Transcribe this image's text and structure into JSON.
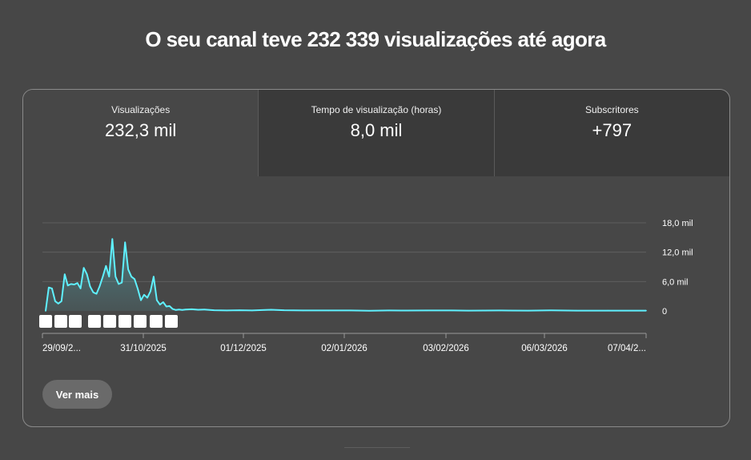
{
  "headline": "O seu canal teve 232 339 visualizações até agora",
  "tabs": [
    {
      "label": "Visualizações",
      "value": "232,3 mil"
    },
    {
      "label": "Tempo de visualização (horas)",
      "value": "8,0 mil"
    },
    {
      "label": "Subscritores",
      "value": "+797"
    }
  ],
  "button": {
    "label": "Ver mais"
  },
  "colors": {
    "line": "#5ff1ff",
    "background": "#474747",
    "tab_inactive": "#3a3a3a"
  },
  "chart_data": {
    "type": "area",
    "y_ticks": [
      "18,0 mil",
      "12,0 mil",
      "6,0 mil",
      "0"
    ],
    "ylim": [
      0,
      18000
    ],
    "x_tick_labels": [
      "29/09/2...",
      "31/10/2025",
      "01/12/2025",
      "02/01/2026",
      "03/02/2026",
      "06/03/2026",
      "07/04/2..."
    ],
    "x_start": "2025-09-29",
    "x_end": "2026-04-07",
    "event_marker_count": 10,
    "grid": true,
    "series": [
      {
        "points": [
          [
            "2025-09-30",
            0
          ],
          [
            "2025-10-01",
            4800
          ],
          [
            "2025-10-02",
            4600
          ],
          [
            "2025-10-03",
            2000
          ],
          [
            "2025-10-04",
            1500
          ],
          [
            "2025-10-05",
            2000
          ],
          [
            "2025-10-06",
            7500
          ],
          [
            "2025-10-07",
            5200
          ],
          [
            "2025-10-08",
            5500
          ],
          [
            "2025-10-09",
            5400
          ],
          [
            "2025-10-10",
            5700
          ],
          [
            "2025-10-11",
            4600
          ],
          [
            "2025-10-12",
            8800
          ],
          [
            "2025-10-13",
            7500
          ],
          [
            "2025-10-14",
            5000
          ],
          [
            "2025-10-15",
            3800
          ],
          [
            "2025-10-16",
            3500
          ],
          [
            "2025-10-17",
            5000
          ],
          [
            "2025-10-18",
            7000
          ],
          [
            "2025-10-19",
            9200
          ],
          [
            "2025-10-20",
            7000
          ],
          [
            "2025-10-21",
            14700
          ],
          [
            "2025-10-22",
            7000
          ],
          [
            "2025-10-23",
            5500
          ],
          [
            "2025-10-24",
            5800
          ],
          [
            "2025-10-25",
            14000
          ],
          [
            "2025-10-26",
            8500
          ],
          [
            "2025-10-27",
            7000
          ],
          [
            "2025-10-28",
            6500
          ],
          [
            "2025-10-29",
            4500
          ],
          [
            "2025-10-30",
            2200
          ],
          [
            "2025-10-31",
            3300
          ],
          [
            "2025-11-01",
            2700
          ],
          [
            "2025-11-02",
            4000
          ],
          [
            "2025-11-03",
            7000
          ],
          [
            "2025-11-04",
            2200
          ],
          [
            "2025-11-05",
            1300
          ],
          [
            "2025-11-06",
            1800
          ],
          [
            "2025-11-07",
            900
          ],
          [
            "2025-11-08",
            1000
          ],
          [
            "2025-11-09",
            400
          ],
          [
            "2025-11-10",
            200
          ],
          [
            "2025-11-11",
            300
          ],
          [
            "2025-11-12",
            200
          ],
          [
            "2025-11-13",
            300
          ],
          [
            "2025-11-15",
            350
          ],
          [
            "2025-11-17",
            250
          ],
          [
            "2025-11-19",
            300
          ],
          [
            "2025-11-22",
            150
          ],
          [
            "2025-11-26",
            100
          ],
          [
            "2025-11-30",
            150
          ],
          [
            "2025-12-04",
            100
          ],
          [
            "2025-12-08",
            200
          ],
          [
            "2025-12-10",
            250
          ],
          [
            "2025-12-14",
            150
          ],
          [
            "2025-12-20",
            100
          ],
          [
            "2025-12-28",
            100
          ],
          [
            "2026-01-04",
            100
          ],
          [
            "2026-01-10",
            50
          ],
          [
            "2026-01-16",
            100
          ],
          [
            "2026-01-20",
            80
          ],
          [
            "2026-01-28",
            100
          ],
          [
            "2026-02-05",
            100
          ],
          [
            "2026-02-10",
            60
          ],
          [
            "2026-02-20",
            100
          ],
          [
            "2026-03-01",
            60
          ],
          [
            "2026-03-08",
            120
          ],
          [
            "2026-03-16",
            60
          ],
          [
            "2026-03-26",
            60
          ],
          [
            "2026-04-07",
            60
          ]
        ]
      }
    ]
  }
}
